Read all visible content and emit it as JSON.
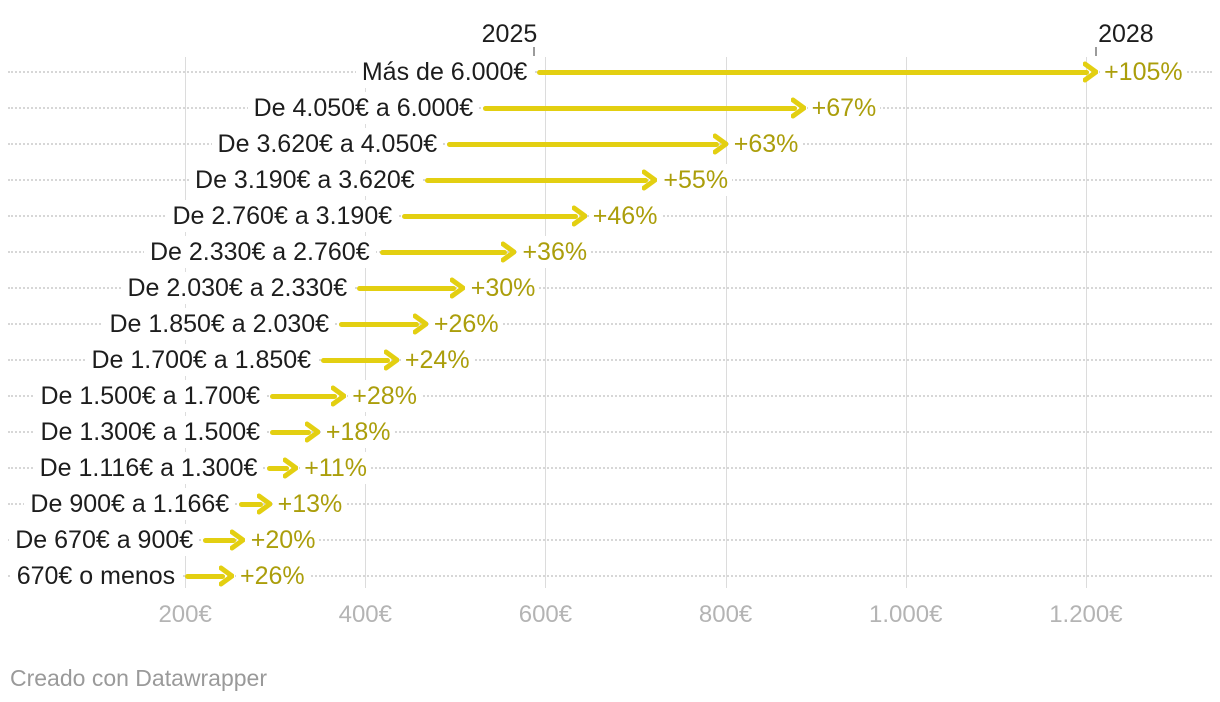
{
  "header": {
    "start_year_label": "2025",
    "end_year_label": "2028"
  },
  "footer": {
    "attribution": "Creado con Datawrapper"
  },
  "colors": {
    "arrow": "#e3cf11",
    "pct_text": "#ab9e0b",
    "category_text": "#1d1d1d",
    "axis_text": "#b4b4b4",
    "gridline": "#dcdcdc",
    "dotted_line": "#d7d7d7",
    "header_tick": "#9b9b9b",
    "footer_text": "#9a9a9a"
  },
  "chart_data": {
    "type": "arrow",
    "title": "",
    "unit": "€",
    "legend": {
      "start_label": "2025",
      "end_label": "2028",
      "start_label_anchor_value": 590.9,
      "end_label_anchor_value": 1211.3
    },
    "x_axis": {
      "min": 0,
      "max": 1340,
      "ticks": [
        {
          "value": 200,
          "label": "200€"
        },
        {
          "value": 400,
          "label": "400€"
        },
        {
          "value": 600,
          "label": "600€"
        },
        {
          "value": 800,
          "label": "800€"
        },
        {
          "value": 1000,
          "label": "1.000€"
        },
        {
          "value": 1200,
          "label": "1.200€"
        }
      ],
      "grid": true
    },
    "rows": [
      {
        "label": "Más de 6.000€",
        "start": 590.9,
        "end": 1211.3,
        "change_label": "+105%"
      },
      {
        "label": "De 4.050€ a 6.000€",
        "start": 530.9,
        "end": 886.6,
        "change_label": "+67%"
      },
      {
        "label": "De 3.620€ a 4.050€",
        "start": 490.9,
        "end": 800.2,
        "change_label": "+63%"
      },
      {
        "label": "De 3.190€ a 3.620€",
        "start": 465.9,
        "end": 722.1,
        "change_label": "+55%"
      },
      {
        "label": "De 2.760€ a 3.190€",
        "start": 440.9,
        "end": 643.7,
        "change_label": "+46%"
      },
      {
        "label": "De 2.330€ a 2.760€",
        "start": 415.9,
        "end": 565.6,
        "change_label": "+36%"
      },
      {
        "label": "De 2.030€ a 2.330€",
        "start": 390.9,
        "end": 508.2,
        "change_label": "+30%"
      },
      {
        "label": "De 1.850€ a 2.030€",
        "start": 370.9,
        "end": 467.3,
        "change_label": "+26%"
      },
      {
        "label": "De 1.700€ a 1.850€",
        "start": 350.9,
        "end": 435.1,
        "change_label": "+24%"
      },
      {
        "label": "De 1.500€ a 1.700€",
        "start": 294.3,
        "end": 376.7,
        "change_label": "+28%"
      },
      {
        "label": "De 1.300€ a 1.500€",
        "start": 294.3,
        "end": 347.3,
        "change_label": "+18%"
      },
      {
        "label": "De 1.116€ a 1.300€",
        "start": 291.3,
        "end": 323.3,
        "change_label": "+11%"
      },
      {
        "label": "De 900€ a 1.166€",
        "start": 260.0,
        "end": 293.8,
        "change_label": "+13%"
      },
      {
        "label": "De 670€ a 900€",
        "start": 220.0,
        "end": 264.0,
        "change_label": "+20%"
      },
      {
        "label": "670€ o menos",
        "start": 200.0,
        "end": 252.0,
        "change_label": "+26%"
      }
    ]
  }
}
